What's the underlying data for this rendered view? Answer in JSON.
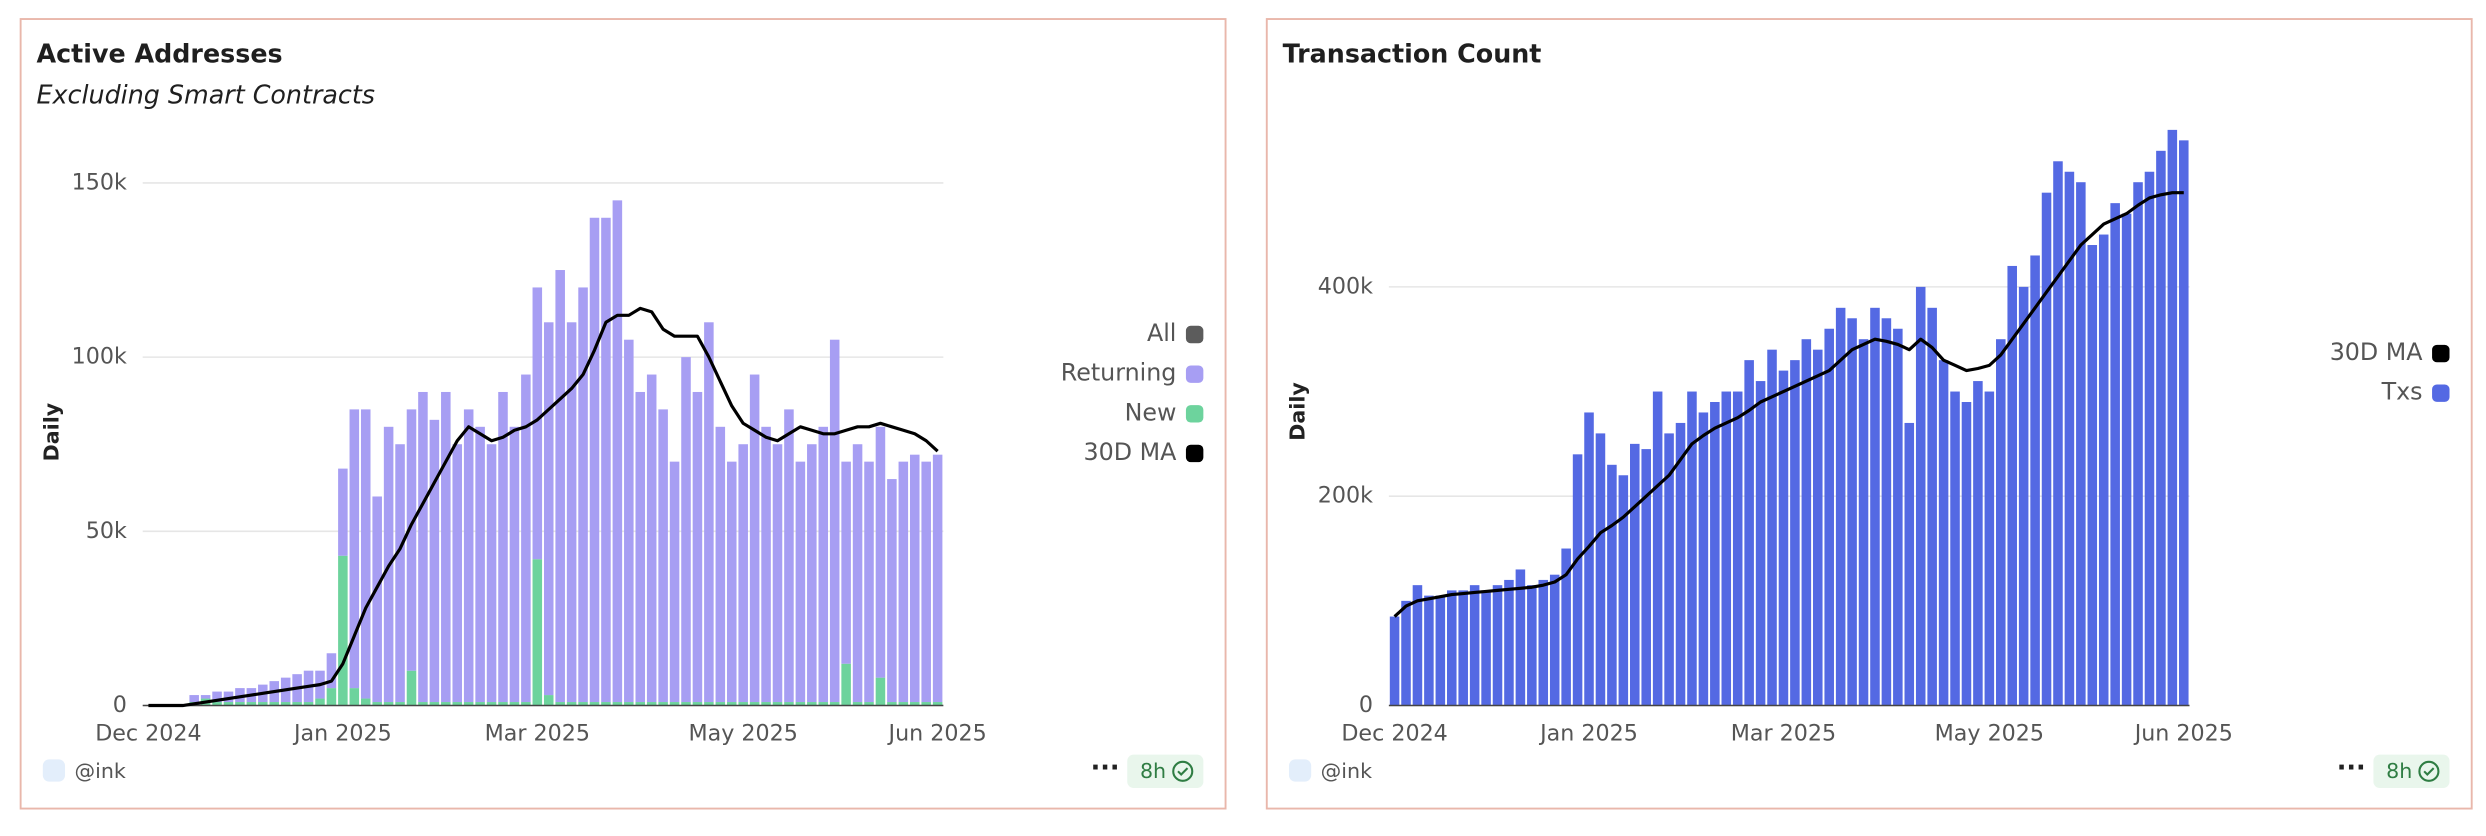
{
  "chart_data": [
    {
      "type": "bar",
      "stacked": true,
      "title": "Active Addresses",
      "subtitle": "Excluding Smart Contracts",
      "y_label": "Daily",
      "categories": [
        "Dec 2024",
        null,
        null,
        null,
        null,
        null,
        null,
        null,
        null,
        null,
        null,
        null,
        null,
        null,
        null,
        null,
        null,
        "Jan 2025",
        null,
        null,
        null,
        null,
        null,
        null,
        null,
        null,
        null,
        null,
        null,
        null,
        null,
        null,
        null,
        null,
        "Mar 2025",
        null,
        null,
        null,
        null,
        null,
        null,
        null,
        null,
        null,
        null,
        null,
        null,
        null,
        null,
        null,
        null,
        null,
        "May 2025",
        null,
        null,
        null,
        null,
        null,
        null,
        null,
        null,
        null,
        null,
        null,
        null,
        null,
        null,
        null,
        null,
        "Jun 2025"
      ],
      "legend_only": [
        {
          "name": "All",
          "color": "#5c5c5c"
        }
      ],
      "series": [
        {
          "name": "Returning",
          "type": "bar",
          "color": "#a79ef3",
          "values": [
            0,
            0,
            0,
            0,
            2000,
            1000,
            3000,
            3000,
            4000,
            4000,
            5000,
            6000,
            7000,
            8000,
            9000,
            8000,
            10000,
            25000,
            80000,
            83000,
            59000,
            79000,
            74000,
            75000,
            89000,
            81000,
            89000,
            74000,
            84000,
            79000,
            74000,
            89000,
            79000,
            94000,
            78000,
            107000,
            124000,
            109000,
            119000,
            139000,
            139000,
            144000,
            104000,
            89000,
            94000,
            84000,
            69000,
            99000,
            89000,
            109000,
            79000,
            69000,
            74000,
            94000,
            79000,
            74000,
            84000,
            69000,
            74000,
            79000,
            104000,
            58000,
            74000,
            69000,
            72000,
            64000,
            69000,
            71000,
            69000,
            71000
          ]
        },
        {
          "name": "New",
          "type": "bar",
          "color": "#6dd39d",
          "values": [
            0,
            0,
            0,
            0,
            1000,
            2000,
            1000,
            1000,
            1000,
            1000,
            1000,
            1000,
            1000,
            1000,
            1000,
            2000,
            5000,
            43000,
            5000,
            2000,
            1000,
            1000,
            1000,
            10000,
            1000,
            1000,
            1000,
            1000,
            1000,
            1000,
            1000,
            1000,
            1000,
            1000,
            42000,
            3000,
            1000,
            1000,
            1000,
            1000,
            1000,
            1000,
            1000,
            1000,
            1000,
            1000,
            1000,
            1000,
            1000,
            1000,
            1000,
            1000,
            1000,
            1000,
            1000,
            1000,
            1000,
            1000,
            1000,
            1000,
            1000,
            12000,
            1000,
            1000,
            8000,
            1000,
            1000,
            1000,
            1000,
            1000
          ]
        },
        {
          "name": "30D MA",
          "type": "line",
          "color": "#000000",
          "values": [
            0,
            0,
            0,
            0,
            500,
            1000,
            1500,
            2000,
            2500,
            3000,
            3500,
            4000,
            4500,
            5000,
            5500,
            6000,
            7000,
            12000,
            20000,
            28000,
            34000,
            40000,
            45000,
            52000,
            58000,
            64000,
            70000,
            76000,
            80000,
            78000,
            76000,
            77000,
            79000,
            80000,
            82000,
            85000,
            88000,
            91000,
            95000,
            102000,
            110000,
            112000,
            112000,
            114000,
            113000,
            108000,
            106000,
            106000,
            106000,
            100000,
            93000,
            86000,
            81000,
            79000,
            77000,
            76000,
            78000,
            80000,
            79000,
            78000,
            78000,
            79000,
            80000,
            80000,
            81000,
            80000,
            79000,
            78000,
            76000,
            73000
          ]
        }
      ],
      "ylim": [
        0,
        157000
      ],
      "yticks": [
        0,
        {
          "value": 50000,
          "label": "50k"
        },
        {
          "value": 100000,
          "label": "100k"
        },
        {
          "value": 150000,
          "label": "150k"
        }
      ],
      "grid": true,
      "legend_position": "right",
      "footer_handle": "@ink",
      "footer_badge": "8h"
    },
    {
      "type": "bar",
      "stacked": false,
      "title": "Transaction Count",
      "y_label": "Daily",
      "categories": [
        "Dec 2024",
        null,
        null,
        null,
        null,
        null,
        null,
        null,
        null,
        null,
        null,
        null,
        null,
        null,
        null,
        null,
        null,
        "Jan 2025",
        null,
        null,
        null,
        null,
        null,
        null,
        null,
        null,
        null,
        null,
        null,
        null,
        null,
        null,
        null,
        null,
        "Mar 2025",
        null,
        null,
        null,
        null,
        null,
        null,
        null,
        null,
        null,
        null,
        null,
        null,
        null,
        null,
        null,
        null,
        null,
        "May 2025",
        null,
        null,
        null,
        null,
        null,
        null,
        null,
        null,
        null,
        null,
        null,
        null,
        null,
        null,
        null,
        null,
        "Jun 2025"
      ],
      "series": [
        {
          "name": "30D MA",
          "type": "line",
          "color": "#000000",
          "values": [
            85000,
            95000,
            100000,
            102000,
            104000,
            106000,
            107000,
            108000,
            109000,
            110000,
            111000,
            112000,
            113000,
            115000,
            118000,
            125000,
            140000,
            152000,
            165000,
            172000,
            180000,
            190000,
            200000,
            210000,
            220000,
            235000,
            250000,
            258000,
            265000,
            270000,
            275000,
            282000,
            290000,
            295000,
            300000,
            305000,
            310000,
            315000,
            320000,
            330000,
            340000,
            345000,
            350000,
            348000,
            345000,
            340000,
            350000,
            342000,
            330000,
            325000,
            320000,
            322000,
            325000,
            335000,
            350000,
            365000,
            380000,
            395000,
            410000,
            425000,
            440000,
            450000,
            460000,
            465000,
            470000,
            478000,
            485000,
            488000,
            490000,
            490000
          ]
        },
        {
          "name": "Txs",
          "type": "bar",
          "color": "#5469e3",
          "values": [
            85000,
            100000,
            115000,
            105000,
            105000,
            110000,
            110000,
            115000,
            110000,
            115000,
            120000,
            130000,
            115000,
            120000,
            125000,
            150000,
            240000,
            280000,
            260000,
            230000,
            220000,
            250000,
            245000,
            300000,
            260000,
            270000,
            300000,
            280000,
            290000,
            300000,
            300000,
            330000,
            310000,
            340000,
            320000,
            330000,
            350000,
            340000,
            360000,
            380000,
            370000,
            350000,
            380000,
            370000,
            360000,
            270000,
            400000,
            380000,
            330000,
            300000,
            290000,
            310000,
            300000,
            350000,
            420000,
            400000,
            430000,
            490000,
            520000,
            510000,
            500000,
            440000,
            450000,
            480000,
            470000,
            500000,
            510000,
            530000,
            550000,
            540000
          ]
        }
      ],
      "ylim": [
        0,
        562000
      ],
      "yticks": [
        0,
        {
          "value": 200000,
          "label": "200k"
        },
        {
          "value": 400000,
          "label": "400k"
        }
      ],
      "grid": true,
      "legend_position": "right",
      "footer_handle": "@ink",
      "footer_badge": "8h"
    }
  ]
}
